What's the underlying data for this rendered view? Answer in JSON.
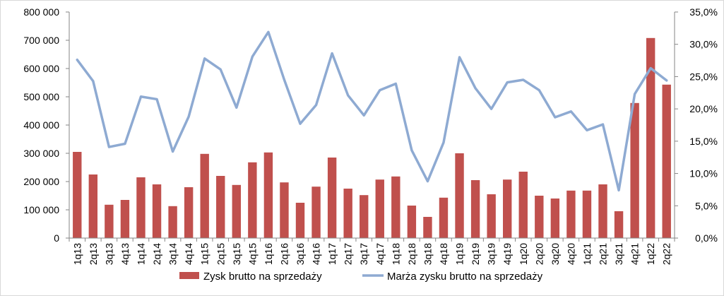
{
  "chart_data": {
    "type": "bar",
    "categories": [
      "1q13",
      "2q13",
      "3q13",
      "4q13",
      "1q14",
      "2q14",
      "3q14",
      "4q14",
      "1q15",
      "2q15",
      "3q15",
      "4q15",
      "1q16",
      "2q16",
      "3q16",
      "4q16",
      "1q17",
      "2q17",
      "3q17",
      "4q17",
      "1q18",
      "2q18",
      "3q18",
      "4q18",
      "1q19",
      "2q19",
      "3q19",
      "4q19",
      "1q20",
      "2q20",
      "3q20",
      "4q20",
      "1q21",
      "2q21",
      "3q21",
      "4q21",
      "1q22",
      "2q22"
    ],
    "series": [
      {
        "name": "Zysk brutto na sprzedaży",
        "type": "bar",
        "axis": "left",
        "color": "#c0504d",
        "values": [
          305000,
          225000,
          118000,
          135000,
          215000,
          190000,
          113000,
          180000,
          298000,
          220000,
          188000,
          268000,
          303000,
          197000,
          125000,
          182000,
          285000,
          175000,
          152000,
          207000,
          218000,
          115000,
          75000,
          143000,
          300000,
          205000,
          155000,
          207000,
          235000,
          150000,
          140000,
          168000,
          168000,
          190000,
          95000,
          478000,
          708000,
          543000
        ]
      },
      {
        "name": "Marża zysku brutto na sprzedaży",
        "type": "line",
        "axis": "right",
        "color": "#8eaad2",
        "values": [
          27.6,
          24.3,
          14.1,
          14.6,
          21.9,
          21.5,
          13.4,
          18.8,
          27.8,
          26.1,
          20.2,
          28.1,
          31.9,
          24.5,
          17.7,
          20.6,
          28.6,
          22.1,
          19.0,
          22.9,
          23.9,
          13.6,
          8.8,
          14.8,
          28.0,
          23.2,
          20.0,
          24.1,
          24.5,
          22.9,
          18.7,
          19.6,
          16.7,
          17.6,
          7.4,
          22.3,
          26.3,
          24.4
        ]
      }
    ],
    "y_left": {
      "ylim": [
        0,
        800000
      ],
      "ticks": [
        "0",
        "100 000",
        "200 000",
        "300 000",
        "400 000",
        "500 000",
        "600 000",
        "700 000",
        "800 000"
      ]
    },
    "y_right": {
      "ylim": [
        0,
        35
      ],
      "ticks": [
        "0,0%",
        "5,0%",
        "10,0%",
        "15,0%",
        "20,0%",
        "25,0%",
        "30,0%",
        "35,0%"
      ]
    },
    "legend": {
      "placement": "bottom",
      "items": [
        "Zysk brutto na sprzedaży",
        "Marża zysku brutto na sprzedaży"
      ]
    },
    "grid": false
  }
}
